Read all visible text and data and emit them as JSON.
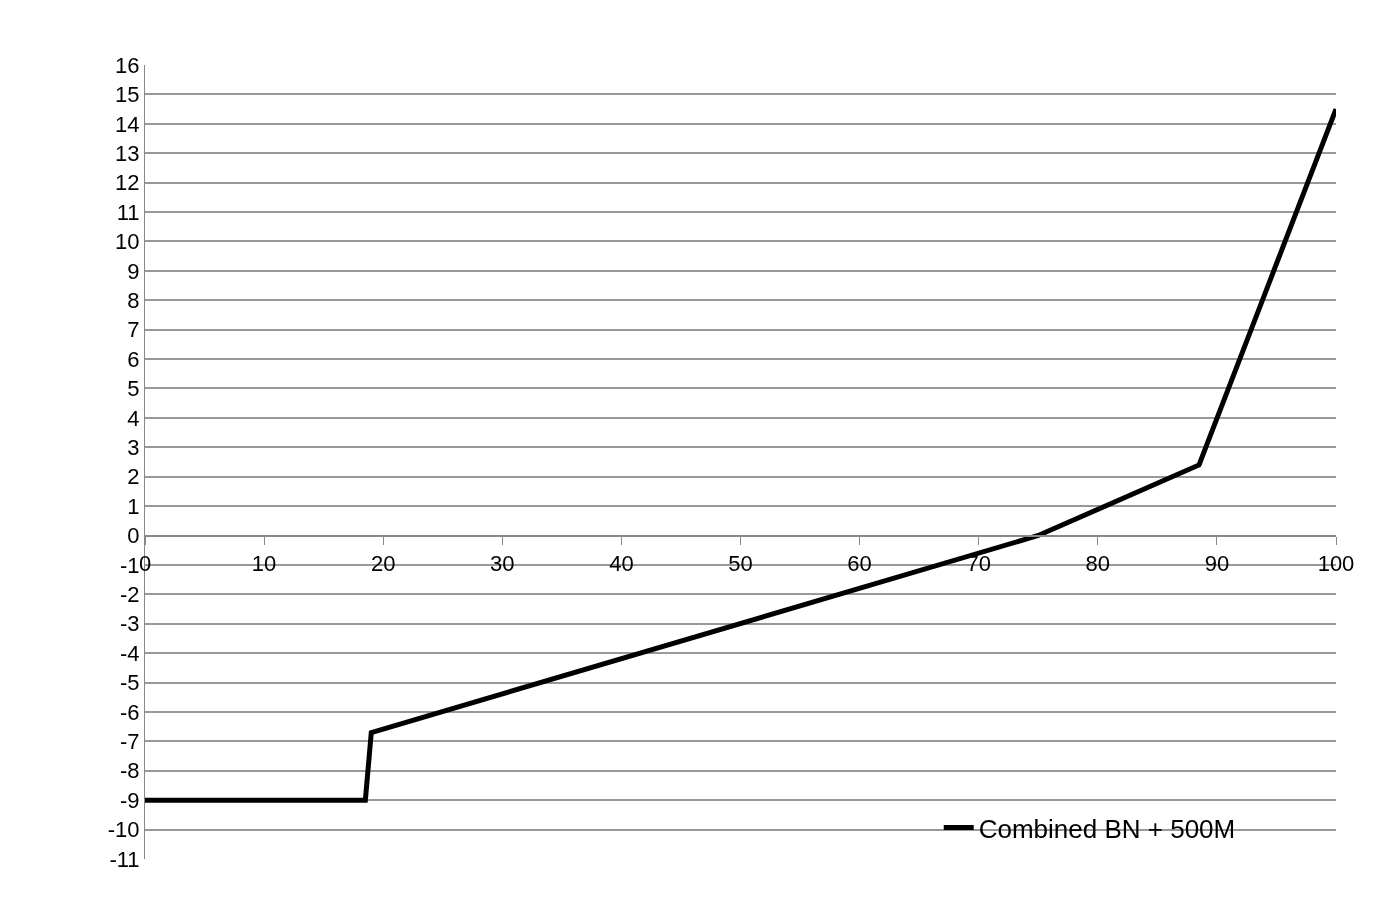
{
  "chart_data": {
    "type": "line",
    "x": [
      0,
      18.5,
      19,
      75,
      88.5,
      100
    ],
    "series": [
      {
        "name": "Combined BN + 500M",
        "color": "#000000",
        "values": [
          -9,
          -9,
          -6.7,
          0,
          2.4,
          14.5
        ]
      }
    ],
    "xlim": [
      0,
      100
    ],
    "xticks": [
      0,
      10,
      20,
      30,
      40,
      50,
      60,
      70,
      80,
      90,
      100
    ],
    "ylim": [
      -11,
      16
    ],
    "yticks": [
      -11,
      -10,
      -9,
      -8,
      -7,
      -6,
      -5,
      -4,
      -3,
      -2,
      -1,
      0,
      1,
      2,
      3,
      4,
      5,
      6,
      7,
      8,
      9,
      10,
      11,
      12,
      13,
      14,
      15,
      16
    ],
    "grid": "y",
    "legend": "bottom right",
    "marker": "none",
    "line_style": "solid"
  }
}
